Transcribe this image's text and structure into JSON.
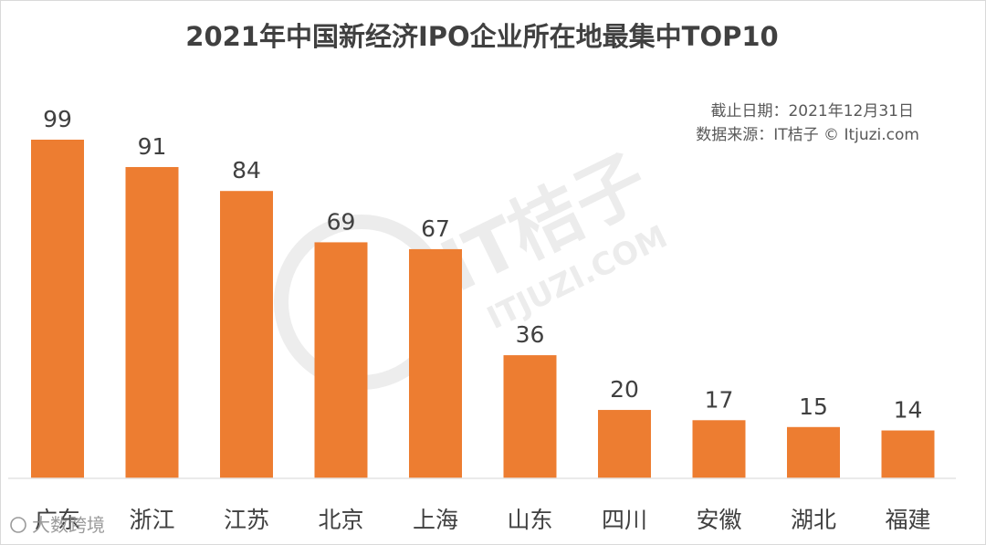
{
  "chart_data": {
    "type": "bar",
    "title": "2021年中国新经济IPO企业所在地最集中TOP10",
    "categories": [
      "广东",
      "浙江",
      "江苏",
      "北京",
      "上海",
      "山东",
      "四川",
      "安徽",
      "湖北",
      "福建"
    ],
    "values": [
      99,
      91,
      84,
      69,
      67,
      36,
      20,
      17,
      15,
      14
    ],
    "xlabel": "",
    "ylabel": "",
    "ylim": [
      0,
      100
    ],
    "grid": false,
    "legend": "none",
    "bar_color": "#ed7d31",
    "annotations": [
      "截止日期：2021年12月31日",
      "数据来源：IT桔子 © Itjuzi.com"
    ]
  },
  "watermark": {
    "brand": "IT桔子",
    "site": "ITJUZI.COM",
    "corner": "大数跨境"
  }
}
